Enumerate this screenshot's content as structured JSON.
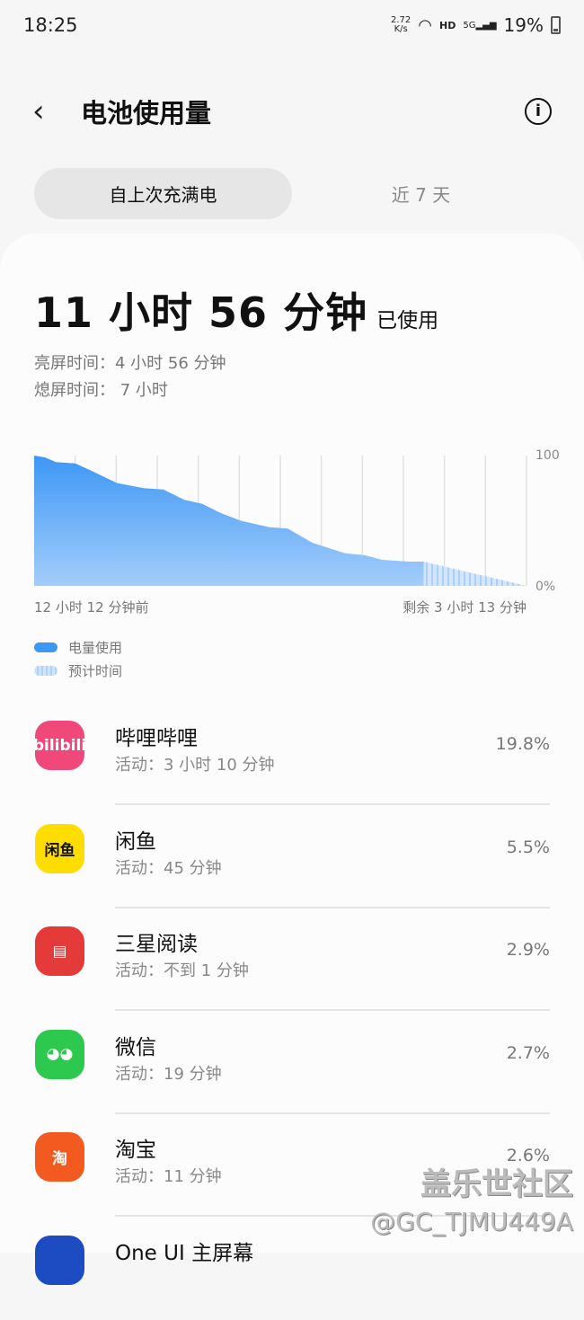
{
  "status": {
    "time": "18:25",
    "speed_top": "2.72",
    "speed_bottom": "K/s",
    "hd": "HD",
    "net": "5G",
    "battery": "19%"
  },
  "header": {
    "title": "电池使用量"
  },
  "tabs": [
    {
      "label": "自上次充满电",
      "active": true
    },
    {
      "label": "近 7 天",
      "active": false
    }
  ],
  "summary": {
    "total": "11 小时 56 分钟",
    "total_suffix": "已使用",
    "screen_on": "亮屏时间：4 小时 56 分钟",
    "screen_off": "熄屏时间： 7 小时"
  },
  "chart_data": {
    "type": "area",
    "xlabel_start": "12 小时 12 分钟前",
    "xlabel_end": "剩余 3 小时 13 分钟",
    "ylim": [
      0,
      100
    ],
    "y_ticks": [
      "100",
      "0%"
    ],
    "xlim_hours": [
      0,
      15.42
    ],
    "grid": true,
    "series": [
      {
        "name": "电量使用",
        "color": "#3d97f5",
        "x": [
          0,
          0.34,
          0.68,
          1.29,
          1.74,
          2.59,
          3.43,
          4.05,
          4.7,
          5.26,
          5.83,
          6.47,
          7.37,
          7.94,
          8.72,
          9.74,
          10.36,
          10.89,
          11.73,
          12.2
        ],
        "values": [
          100,
          98.6,
          95,
          94,
          89,
          79,
          75,
          74,
          66,
          63,
          56,
          50,
          45,
          44,
          33,
          25,
          23.5,
          20,
          18.6,
          18.6
        ]
      },
      {
        "name": "预计时间",
        "color": "#b9d8fb",
        "x": [
          12.2,
          15.42
        ],
        "values": [
          18.6,
          0
        ]
      }
    ]
  },
  "apps": [
    {
      "name": "哔哩哔哩",
      "activity": "活动：3 小时 10 分钟",
      "percent": "19.8%",
      "icon": "bilibili",
      "icon_text": "bilibili",
      "color": "#f0487a"
    },
    {
      "name": "闲鱼",
      "activity": "活动：45 分钟",
      "percent": "5.5%",
      "icon": "xianyu",
      "icon_text": "闲鱼",
      "color": "#ffdd00"
    },
    {
      "name": "三星阅读",
      "activity": "活动：不到 1 分钟",
      "percent": "2.9%",
      "icon": "book",
      "icon_text": "▤",
      "color": "#e53a3a"
    },
    {
      "name": "微信",
      "activity": "活动：19 分钟",
      "percent": "2.7%",
      "icon": "wechat",
      "icon_text": "◕◕",
      "color": "#2dc94f"
    },
    {
      "name": "淘宝",
      "activity": "活动：11 分钟",
      "percent": "2.6%",
      "icon": "taobao",
      "icon_text": "淘",
      "color": "#f25a1f"
    },
    {
      "name": "One UI 主屏幕",
      "activity": "",
      "percent": "",
      "icon": "oneui-home",
      "icon_text": "",
      "color": "#1c4bc2"
    }
  ],
  "watermark": {
    "line1": "盖乐世社区",
    "line2": "@GC_TJMU449A"
  }
}
